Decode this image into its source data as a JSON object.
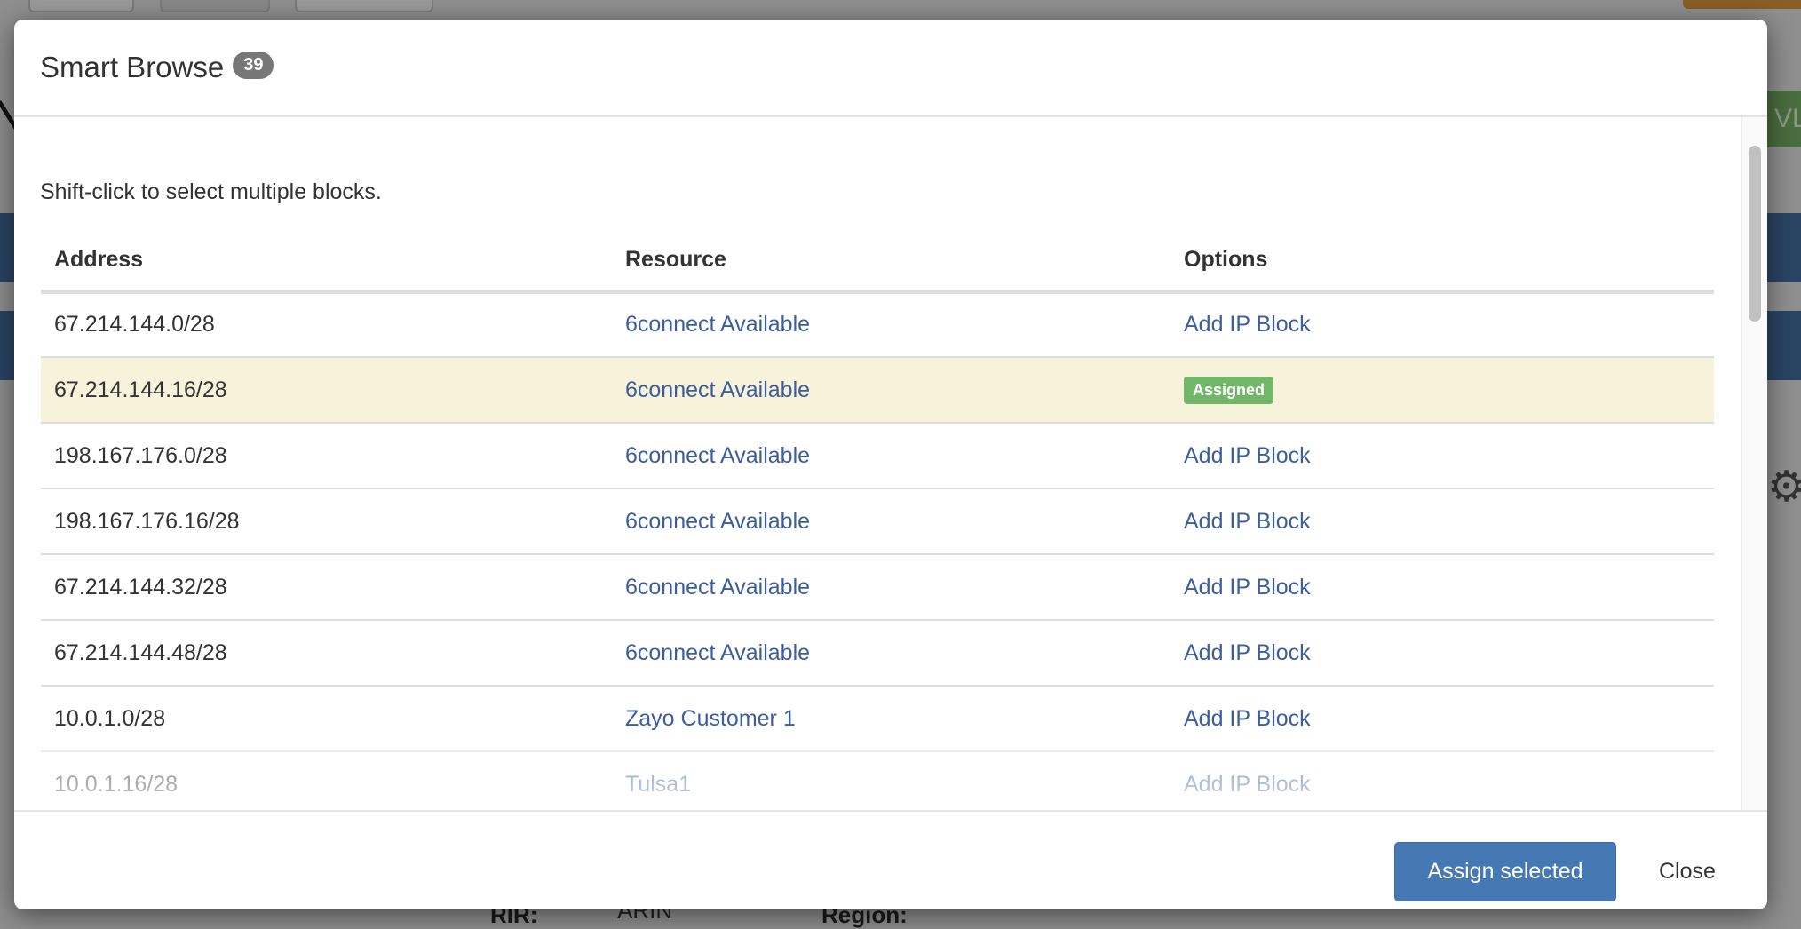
{
  "background": {
    "vlan_button_fragment": "VL",
    "rir_label": "RIR:",
    "rir_value": "ARIN",
    "region_label": "Region:"
  },
  "modal": {
    "title": "Smart Browse",
    "count": "39",
    "hint": "Shift-click to select multiple blocks.",
    "columns": [
      "Address",
      "Resource",
      "Options"
    ],
    "rows": [
      {
        "address": "67.214.144.0/28",
        "resource": "6connect Available",
        "option": "Add IP Block"
      },
      {
        "address": "67.214.144.16/28",
        "resource": "6connect Available",
        "option": "Assigned"
      },
      {
        "address": "198.167.176.0/28",
        "resource": "6connect Available",
        "option": "Add IP Block"
      },
      {
        "address": "198.167.176.16/28",
        "resource": "6connect Available",
        "option": "Add IP Block"
      },
      {
        "address": "67.214.144.32/28",
        "resource": "6connect Available",
        "option": "Add IP Block"
      },
      {
        "address": "67.214.144.48/28",
        "resource": "6connect Available",
        "option": "Add IP Block"
      },
      {
        "address": "10.0.1.0/28",
        "resource": "Zayo Customer 1",
        "option": "Add IP Block"
      },
      {
        "address": "10.0.1.16/28",
        "resource": "Tulsa1",
        "option": "Add IP Block"
      }
    ],
    "assign_button": "Assign selected",
    "close_button": "Close"
  },
  "colors": {
    "link": "#3c5e9e",
    "assigned": "#72b66a",
    "primary": "#4679b3",
    "selected_row": "#f7f2da"
  }
}
